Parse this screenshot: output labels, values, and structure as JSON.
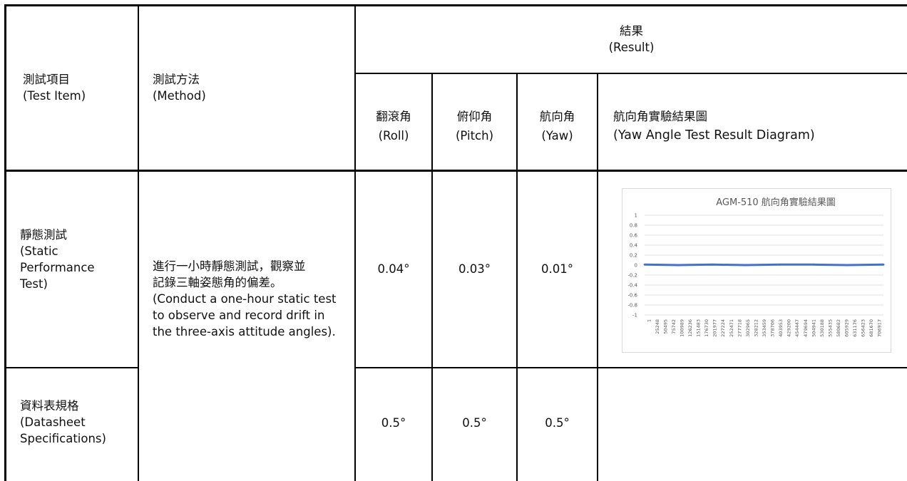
{
  "header": {
    "test_item": {
      "zh": "測試項目",
      "en": "(Test Item)"
    },
    "method": {
      "zh": "測試方法",
      "en": "(Method)"
    },
    "result": {
      "zh": "結果",
      "en": "(Result)"
    },
    "roll": {
      "zh": "翻滾角",
      "en": "(Roll)"
    },
    "pitch": {
      "zh": "俯仰角",
      "en": "(Pitch)"
    },
    "yaw": {
      "zh": "航向角",
      "en": "(Yaw)"
    },
    "diagram": {
      "zh": "航向角實驗結果圖",
      "en": "(Yaw Angle Test Result Diagram)"
    }
  },
  "rows": [
    {
      "item_zh": "靜態測試",
      "item_en_1": "(Static",
      "item_en_2": "Performance",
      "item_en_3": "Test)",
      "roll": "0.04°",
      "pitch": "0.03°",
      "yaw": "0.01°"
    },
    {
      "item_zh": "資料表規格",
      "item_en_1": "(Datasheet",
      "item_en_2": "Specifications)",
      "roll": "0.5°",
      "pitch": "0.5°",
      "yaw": "0.5°"
    }
  ],
  "method": {
    "zh_1": "進行一小時靜態測試，觀察並",
    "zh_2": "記錄三軸姿態角的偏差。",
    "en": "(Conduct a one-hour static test to observe and record drift in the three-axis attitude angles)."
  },
  "chart_data": {
    "type": "line",
    "title": "AGM-510 航向角實驗結果圖",
    "ylim": [
      -1,
      1
    ],
    "y_ticks": [
      "1",
      "0.8",
      "0.6",
      "0.4",
      "0.2",
      "0",
      "-0.2",
      "-0.4",
      "-0.6",
      "-0.8",
      "-1"
    ],
    "x_ticks": [
      "1",
      "25248",
      "50495",
      "75742",
      "100989",
      "126236",
      "151483",
      "176730",
      "201977",
      "227224",
      "252471",
      "277718",
      "302965",
      "328212",
      "353459",
      "378706",
      "403953",
      "429200",
      "454447",
      "479694",
      "504941",
      "530188",
      "555435",
      "580682",
      "605929",
      "631176",
      "656423",
      "681670",
      "706917"
    ],
    "grid": true,
    "series": [
      {
        "color": "#4472c4",
        "x": [
          1,
          100000,
          200000,
          300000,
          400000,
          500000,
          600000,
          706917
        ],
        "values": [
          0.01,
          0.0,
          0.01,
          0.0,
          0.01,
          0.01,
          0.0,
          0.01
        ]
      }
    ]
  }
}
